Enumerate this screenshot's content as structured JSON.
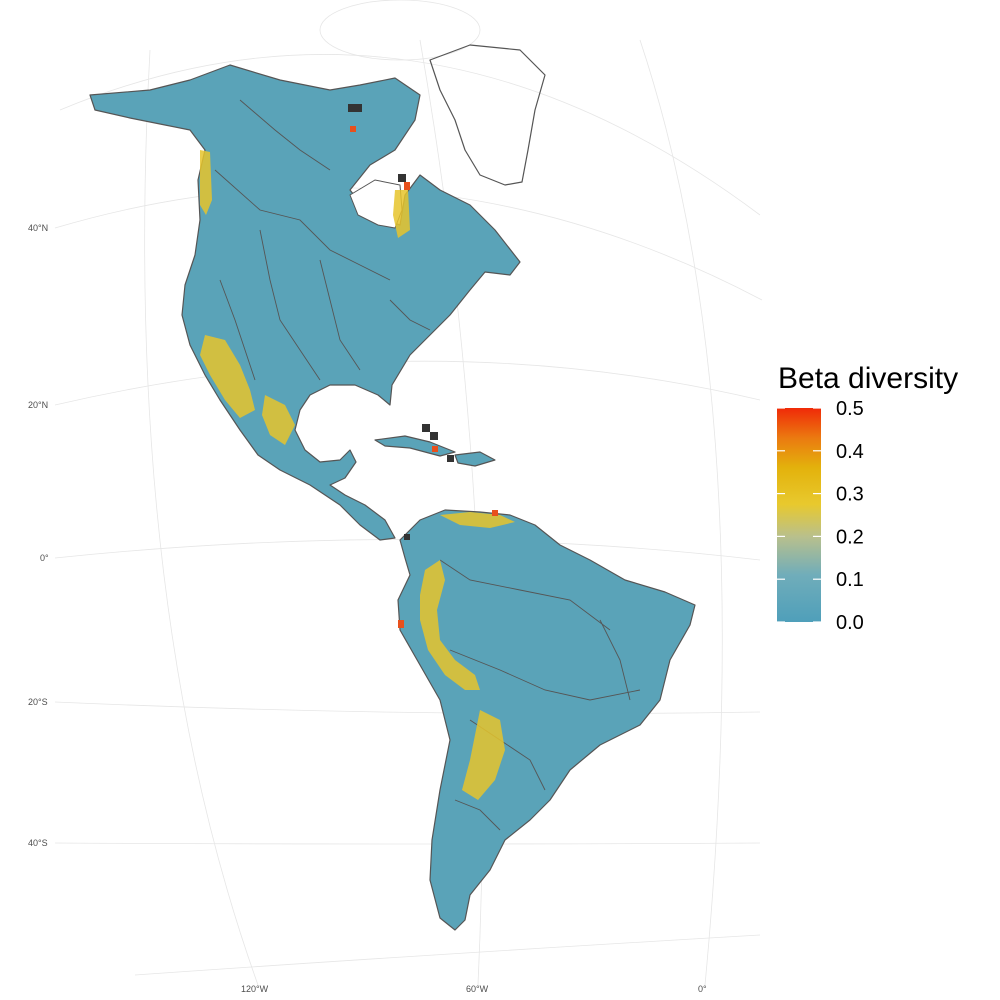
{
  "chart_data": {
    "type": "heatmap",
    "map_region": "Americas",
    "projection": "orthographic",
    "graticule_labels": {
      "latitude": [
        "40°N",
        "20°N",
        "0°",
        "20°S",
        "40°S"
      ],
      "longitude": [
        "120°W",
        "60°W",
        "0°"
      ]
    },
    "legend": {
      "title": "Beta diversity",
      "placement": "right",
      "range": [
        0.0,
        0.5
      ],
      "tick_labels": [
        "0.5",
        "0.4",
        "0.3",
        "0.2",
        "0.1",
        "0.0"
      ],
      "tick_values": [
        0.5,
        0.4,
        0.3,
        0.2,
        0.1,
        0.0
      ],
      "colors": [
        "#4f9fba",
        "#8fb9b8",
        "#e4c92f",
        "#e6ae0c",
        "#ef3a0a"
      ]
    },
    "base_value_approx": 0.1,
    "high_regions": [
      {
        "region": "Andes",
        "value_approx": 0.3
      },
      {
        "region": "Western Mexico",
        "value_approx": 0.3
      },
      {
        "region": "Caribbean islands",
        "value_approx": 0.4
      },
      {
        "region": "Southern Andes",
        "value_approx": 0.25
      }
    ]
  }
}
